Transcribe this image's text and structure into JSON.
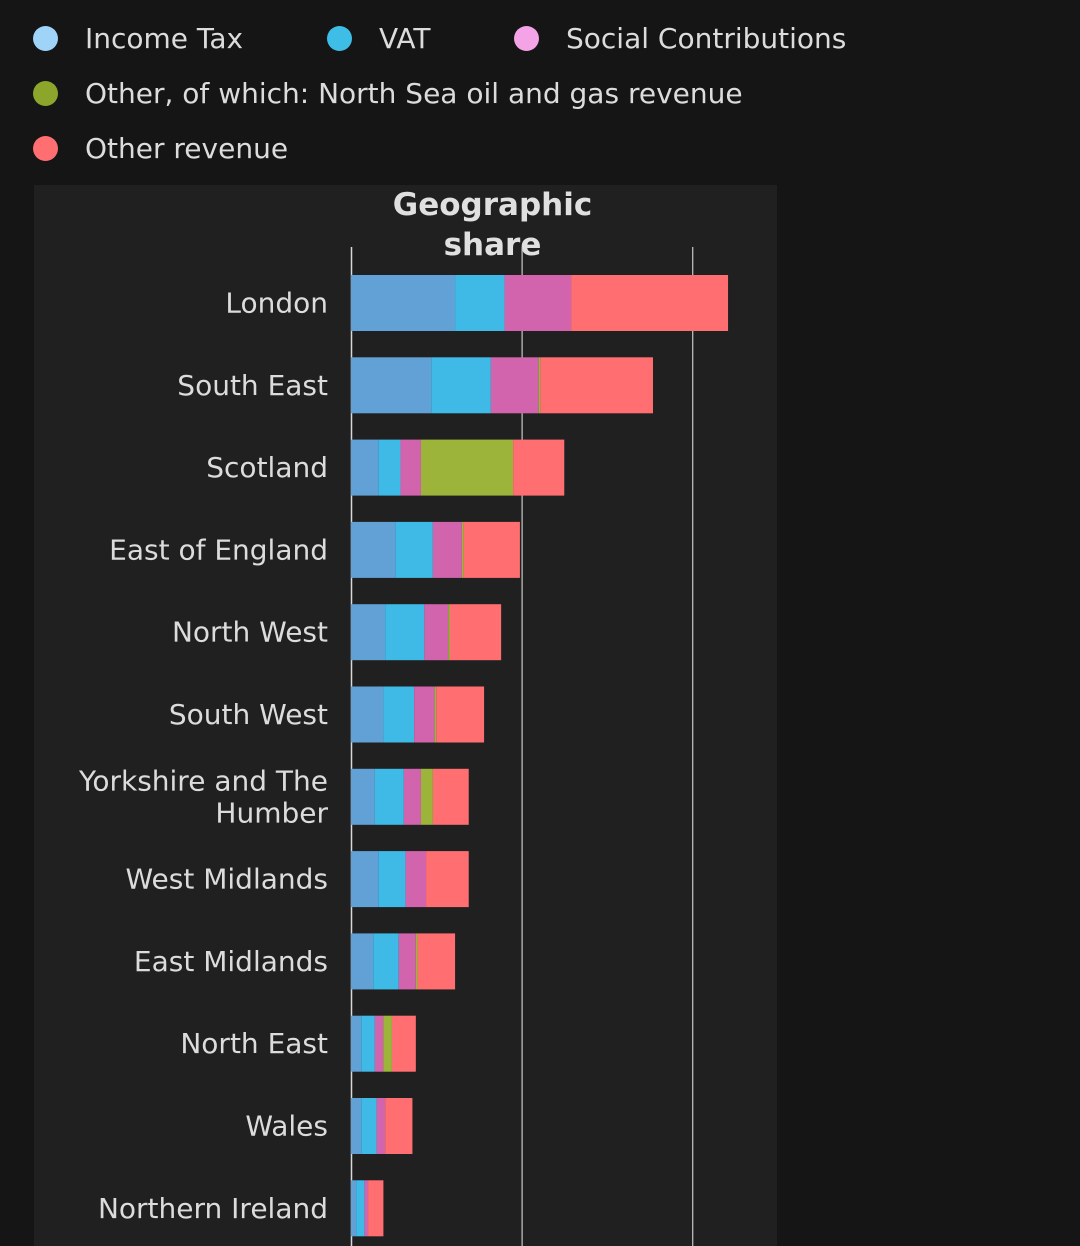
{
  "legend": {
    "items": [
      {
        "label": "Income Tax",
        "color": "#9fd3f7",
        "icon": "circle-marker-icon"
      },
      {
        "label": "VAT",
        "color": "#3ebde6",
        "icon": "circle-marker-icon"
      },
      {
        "label": "Social Contributions",
        "color": "#f3a3e6",
        "icon": "circle-marker-icon"
      },
      {
        "label": "Other, of which: North Sea oil and gas revenue",
        "color": "#8ca62c",
        "icon": "circle-marker-icon"
      },
      {
        "label": "Other revenue",
        "color": "#ff6f72",
        "icon": "circle-marker-icon"
      }
    ]
  },
  "chart_data": {
    "type": "bar",
    "orientation": "horizontal",
    "stacked": true,
    "title": "Geographic share",
    "xlabel": "",
    "ylabel": "",
    "grid": true,
    "legend_position": "top",
    "xlim": [
      0,
      2.45
    ],
    "gridlines": [
      0,
      1,
      2
    ],
    "categories": [
      "London",
      "South East",
      "Scotland",
      "East of England",
      "North West",
      "South West",
      "Yorkshire and The Humber",
      "West Midlands",
      "East Midlands",
      "North East",
      "Wales",
      "Northern Ireland"
    ],
    "series": [
      {
        "name": "Income Tax",
        "color": "#62a1d6",
        "values": [
          0.61,
          0.47,
          0.16,
          0.26,
          0.2,
          0.19,
          0.14,
          0.16,
          0.13,
          0.06,
          0.06,
          0.03
        ]
      },
      {
        "name": "VAT",
        "color": "#3fb9e6",
        "values": [
          0.29,
          0.35,
          0.13,
          0.22,
          0.23,
          0.18,
          0.17,
          0.16,
          0.15,
          0.08,
          0.09,
          0.05
        ]
      },
      {
        "name": "Social Contributions",
        "color": "#d164ac",
        "values": [
          0.39,
          0.28,
          0.12,
          0.17,
          0.14,
          0.12,
          0.1,
          0.12,
          0.1,
          0.05,
          0.05,
          0.02
        ]
      },
      {
        "name": "Other, of which: North Sea oil and gas revenue",
        "color": "#9db43a",
        "values": [
          0.0,
          0.01,
          0.54,
          0.01,
          0.01,
          0.01,
          0.07,
          0.0,
          0.01,
          0.05,
          0.0,
          0.0
        ]
      },
      {
        "name": "Other revenue",
        "color": "#ff6f72",
        "values": [
          0.92,
          0.66,
          0.3,
          0.33,
          0.3,
          0.28,
          0.21,
          0.25,
          0.22,
          0.14,
          0.16,
          0.09
        ]
      }
    ]
  }
}
